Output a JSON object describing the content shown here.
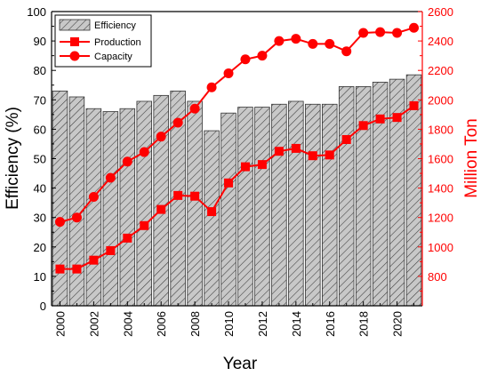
{
  "chart_data": {
    "type": "bar",
    "xlabel": "Year",
    "ylabel_left": "Efficiency (%)",
    "ylabel_right": "Million Ton",
    "ylim_left": [
      0,
      100
    ],
    "ylim_right": [
      600,
      2600
    ],
    "yticks_left": [
      0,
      10,
      20,
      30,
      40,
      50,
      60,
      70,
      80,
      90,
      100
    ],
    "yticks_right": [
      800,
      1000,
      1200,
      1400,
      1600,
      1800,
      2000,
      2200,
      2400,
      2600
    ],
    "x_tick_labels": [
      "2000",
      "2002",
      "2004",
      "2006",
      "2008",
      "2010",
      "2012",
      "2014",
      "2016",
      "2018",
      "2020"
    ],
    "grid": false,
    "legend_position": "top-left",
    "categories": [
      2000,
      2001,
      2002,
      2003,
      2004,
      2005,
      2006,
      2007,
      2008,
      2009,
      2010,
      2011,
      2012,
      2013,
      2014,
      2015,
      2016,
      2017,
      2018,
      2019,
      2020,
      2021
    ],
    "series": [
      {
        "name": "Efficiency",
        "type": "bar",
        "axis": "left",
        "values": [
          73,
          71,
          67,
          66,
          67,
          69.5,
          71.5,
          73,
          69.5,
          59.5,
          65.5,
          67.5,
          67.5,
          68.5,
          69.5,
          68.5,
          68.5,
          74.5,
          74.5,
          76,
          77,
          78.5
        ]
      },
      {
        "name": "Production",
        "type": "line",
        "marker": "square",
        "axis": "right",
        "values": [
          850,
          850,
          910,
          975,
          1060,
          1145,
          1255,
          1350,
          1345,
          1240,
          1435,
          1545,
          1560,
          1650,
          1670,
          1620,
          1625,
          1730,
          1825,
          1870,
          1880,
          1960
        ]
      },
      {
        "name": "Capacity",
        "type": "line",
        "marker": "circle",
        "axis": "right",
        "values": [
          1170,
          1200,
          1340,
          1470,
          1580,
          1645,
          1750,
          1845,
          1940,
          2085,
          2180,
          2275,
          2300,
          2400,
          2415,
          2380,
          2380,
          2330,
          2455,
          2460,
          2455,
          2490
        ]
      }
    ]
  },
  "colors": {
    "bar_fill": "#c8c8c8",
    "bar_hatch": "#3a3a3a",
    "bar_stroke": "#333333",
    "line": "#ff0000",
    "axis_left": "#000000",
    "axis_right": "#ff0000"
  }
}
